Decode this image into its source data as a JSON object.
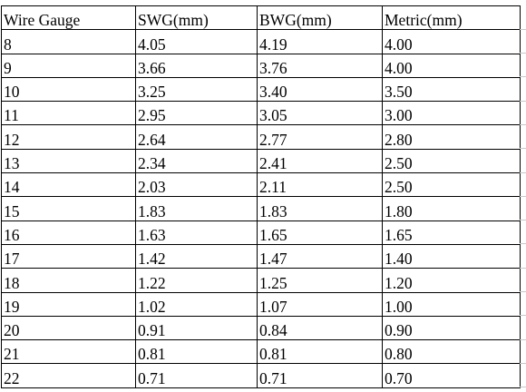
{
  "table": {
    "headers": [
      "Wire Gauge",
      "SWG(mm)",
      "BWG(mm)",
      "Metric(mm)"
    ],
    "rows": [
      [
        "8",
        "4.05",
        "4.19",
        "4.00"
      ],
      [
        "9",
        "3.66",
        "3.76",
        "4.00"
      ],
      [
        "10",
        "3.25",
        "3.40",
        "3.50"
      ],
      [
        "11",
        "2.95",
        "3.05",
        "3.00"
      ],
      [
        "12",
        "2.64",
        "2.77",
        "2.80"
      ],
      [
        "13",
        "2.34",
        "2.41",
        "2.50"
      ],
      [
        "14",
        "2.03",
        "2.11",
        "2.50"
      ],
      [
        "15",
        "1.83",
        "1.83",
        "1.80"
      ],
      [
        "16",
        "1.63",
        "1.65",
        "1.65"
      ],
      [
        "17",
        "1.42",
        "1.47",
        "1.40"
      ],
      [
        "18",
        "1.22",
        "1.25",
        "1.20"
      ],
      [
        "19",
        "1.02",
        "1.07",
        "1.00"
      ],
      [
        "20",
        "0.91",
        "0.84",
        "0.90"
      ],
      [
        "21",
        "0.81",
        "0.81",
        "0.80"
      ],
      [
        "22",
        "0.71",
        "0.71",
        "0.70"
      ]
    ]
  }
}
